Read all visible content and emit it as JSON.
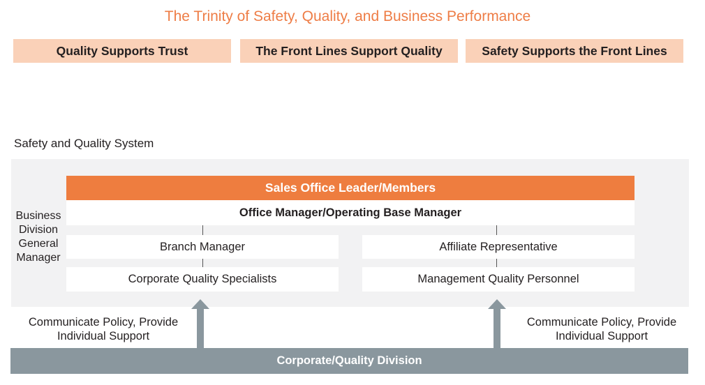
{
  "header": {
    "title": "The Trinity of Safety, Quality, and Business Performance",
    "pillars": [
      "Quality Supports Trust",
      "The Front Lines Support Quality",
      "Safety Supports the Front Lines"
    ]
  },
  "system": {
    "section_title": "Safety and Quality System",
    "leader": "Sales Office Leader/Members",
    "office_manager": "Office Manager/Operating Base Manager",
    "side_label_lines": [
      "Business",
      "Division",
      "General",
      "Manager"
    ],
    "left_column": {
      "manager": "Branch Manager",
      "specialists": "Corporate Quality Specialists"
    },
    "right_column": {
      "manager": "Affiliate Representative",
      "specialists": "Management Quality Personnel"
    },
    "support_left": [
      "Communicate Policy, Provide",
      "Individual Support"
    ],
    "support_right": [
      "Communicate Policy, Provide",
      "Individual Support"
    ],
    "division": "Corporate/Quality Division"
  },
  "colors": {
    "title_orange": "#ee7d46",
    "pill_peach": "#fad1b8",
    "leader_orange": "#ee7d3f",
    "system_background": "#f2f2f3",
    "division_gray": "#8a979e",
    "arrow_gray": "#8a979e"
  }
}
